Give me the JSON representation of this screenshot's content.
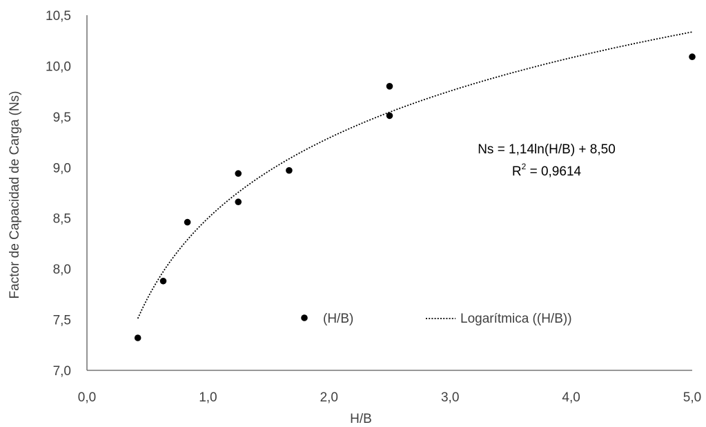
{
  "chart_data": {
    "type": "scatter",
    "xlabel": "H/B",
    "ylabel": "Factor de Capacidad de Carga (Ns)",
    "xlim": [
      0.0,
      5.0
    ],
    "ylim": [
      7.0,
      10.5
    ],
    "x_ticks": [
      0.0,
      1.0,
      2.0,
      3.0,
      4.0,
      5.0
    ],
    "x_tick_labels": [
      "0,0",
      "1,0",
      "2,0",
      "3,0",
      "4,0",
      "5,0"
    ],
    "y_ticks": [
      7.0,
      7.5,
      8.0,
      8.5,
      9.0,
      9.5,
      10.0,
      10.5
    ],
    "y_tick_labels": [
      "7,0",
      "7,5",
      "8,0",
      "8,5",
      "9,0",
      "9,5",
      "10,0",
      "10,5"
    ],
    "grid": false,
    "series": [
      {
        "name": "(H/B)",
        "marker": "circle",
        "color": "#000000",
        "points": [
          {
            "x": 0.42,
            "y": 7.32
          },
          {
            "x": 0.63,
            "y": 7.88
          },
          {
            "x": 0.83,
            "y": 8.46
          },
          {
            "x": 1.25,
            "y": 8.94
          },
          {
            "x": 1.25,
            "y": 8.66
          },
          {
            "x": 1.67,
            "y": 8.97
          },
          {
            "x": 2.5,
            "y": 9.8
          },
          {
            "x": 2.5,
            "y": 9.51
          },
          {
            "x": 5.0,
            "y": 10.09
          }
        ]
      }
    ],
    "trendline": {
      "name": "Logarítmica ((H/B))",
      "type": "logarithmic",
      "coef_a": 1.14,
      "coef_b": 8.5,
      "x_range": [
        0.42,
        5.0
      ],
      "line_style": "dotted",
      "color": "#000000"
    },
    "equation_line1": "Ns = 1,14ln(H/B) + 8,50",
    "equation_r2_prefix": "R",
    "equation_r2_sup": "2",
    "equation_r2_suffix": " = 0,9614",
    "legend": {
      "position": "bottom-center",
      "entries": [
        "(H/B)",
        "Logarítmica ((H/B))"
      ]
    }
  }
}
